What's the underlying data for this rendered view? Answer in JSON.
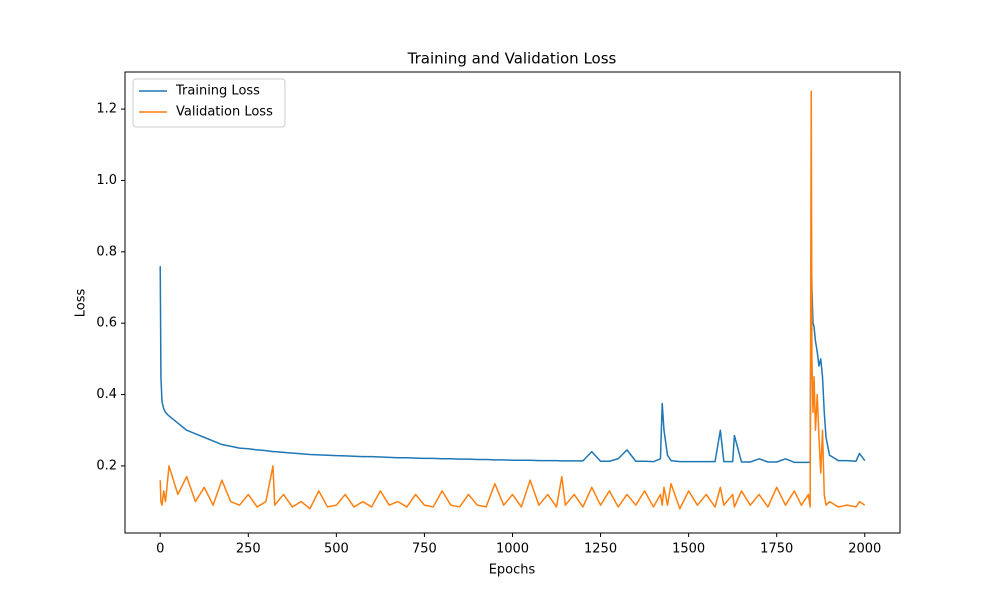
{
  "chart_data": {
    "type": "line",
    "title": "Training and Validation Loss",
    "x_label": "Epochs",
    "y_label": "Loss",
    "x": [
      0,
      2,
      5,
      10,
      15,
      25,
      50,
      75,
      100,
      125,
      150,
      175,
      200,
      225,
      250,
      275,
      300,
      320,
      325,
      350,
      375,
      400,
      425,
      450,
      475,
      500,
      525,
      550,
      575,
      600,
      625,
      650,
      675,
      700,
      725,
      750,
      775,
      800,
      825,
      850,
      875,
      900,
      925,
      950,
      975,
      1000,
      1025,
      1050,
      1075,
      1100,
      1125,
      1140,
      1150,
      1175,
      1200,
      1225,
      1250,
      1275,
      1300,
      1325,
      1350,
      1375,
      1400,
      1420,
      1425,
      1430,
      1440,
      1450,
      1475,
      1500,
      1525,
      1550,
      1575,
      1590,
      1600,
      1625,
      1630,
      1650,
      1675,
      1700,
      1725,
      1750,
      1775,
      1800,
      1820,
      1840,
      1845,
      1848,
      1850,
      1853,
      1856,
      1860,
      1865,
      1870,
      1875,
      1880,
      1885,
      1890,
      1900,
      1925,
      1950,
      1975,
      1985,
      2000
    ],
    "series": [
      {
        "name": "Training Loss",
        "color": "#1f77b4",
        "values": [
          0.76,
          0.45,
          0.38,
          0.36,
          0.35,
          0.34,
          0.32,
          0.3,
          0.29,
          0.28,
          0.27,
          0.26,
          0.255,
          0.25,
          0.248,
          0.245,
          0.243,
          0.24,
          0.24,
          0.238,
          0.236,
          0.234,
          0.232,
          0.231,
          0.23,
          0.229,
          0.228,
          0.227,
          0.226,
          0.226,
          0.225,
          0.224,
          0.223,
          0.223,
          0.222,
          0.221,
          0.221,
          0.22,
          0.22,
          0.219,
          0.219,
          0.218,
          0.218,
          0.217,
          0.217,
          0.216,
          0.216,
          0.216,
          0.215,
          0.215,
          0.215,
          0.214,
          0.214,
          0.214,
          0.214,
          0.24,
          0.213,
          0.213,
          0.22,
          0.245,
          0.213,
          0.213,
          0.212,
          0.22,
          0.375,
          0.3,
          0.23,
          0.215,
          0.212,
          0.212,
          0.212,
          0.212,
          0.212,
          0.3,
          0.212,
          0.212,
          0.285,
          0.211,
          0.211,
          0.22,
          0.211,
          0.211,
          0.22,
          0.21,
          0.21,
          0.21,
          0.21,
          0.82,
          0.7,
          0.6,
          0.59,
          0.55,
          0.52,
          0.48,
          0.5,
          0.45,
          0.35,
          0.28,
          0.23,
          0.215,
          0.215,
          0.213,
          0.235,
          0.215
        ]
      },
      {
        "name": "Validation Loss",
        "color": "#ff7f0e",
        "values": [
          0.16,
          0.1,
          0.09,
          0.13,
          0.1,
          0.2,
          0.12,
          0.17,
          0.1,
          0.14,
          0.09,
          0.16,
          0.1,
          0.09,
          0.12,
          0.085,
          0.1,
          0.2,
          0.09,
          0.12,
          0.085,
          0.1,
          0.08,
          0.13,
          0.085,
          0.09,
          0.12,
          0.085,
          0.1,
          0.085,
          0.13,
          0.09,
          0.1,
          0.085,
          0.12,
          0.09,
          0.085,
          0.13,
          0.09,
          0.085,
          0.12,
          0.09,
          0.085,
          0.15,
          0.09,
          0.12,
          0.085,
          0.16,
          0.09,
          0.12,
          0.085,
          0.17,
          0.09,
          0.12,
          0.085,
          0.14,
          0.09,
          0.13,
          0.085,
          0.12,
          0.09,
          0.13,
          0.085,
          0.12,
          0.09,
          0.14,
          0.09,
          0.15,
          0.08,
          0.13,
          0.09,
          0.12,
          0.085,
          0.14,
          0.09,
          0.12,
          0.085,
          0.13,
          0.09,
          0.12,
          0.085,
          0.14,
          0.09,
          0.13,
          0.09,
          0.12,
          0.085,
          1.25,
          0.5,
          0.35,
          0.45,
          0.3,
          0.4,
          0.28,
          0.18,
          0.3,
          0.12,
          0.09,
          0.1,
          0.085,
          0.09,
          0.085,
          0.1,
          0.09
        ]
      }
    ],
    "xlim": [
      -100,
      2100
    ],
    "ylim": [
      0.012,
      1.304
    ],
    "xticks": [
      0,
      250,
      500,
      750,
      1000,
      1250,
      1500,
      1750,
      2000
    ],
    "yticks": [
      0.2,
      0.4,
      0.6,
      0.8,
      {
        "value": 1.0,
        "label": "1.0"
      },
      1.2
    ],
    "grid": false,
    "legend": "upper left"
  }
}
